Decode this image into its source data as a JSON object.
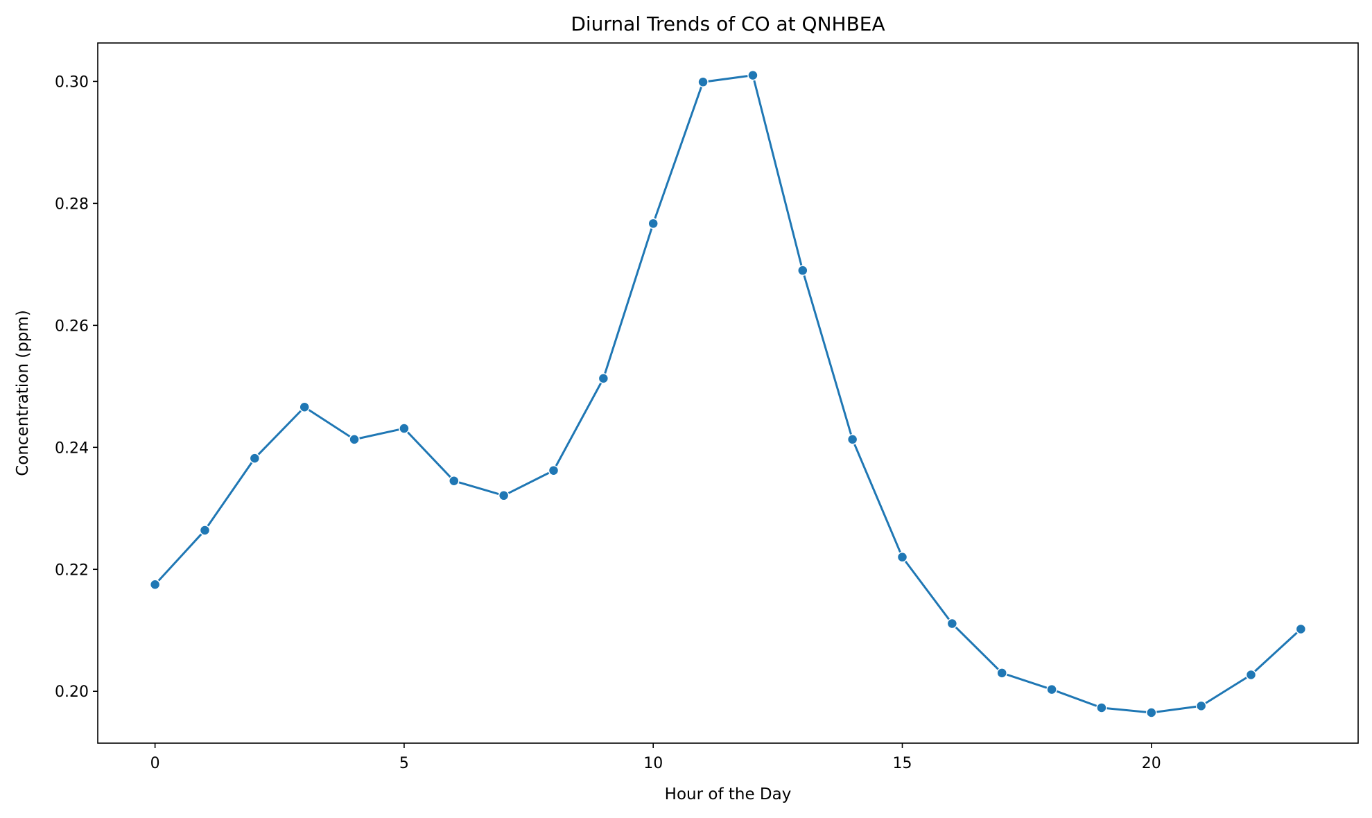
{
  "chart_data": {
    "type": "line",
    "title": "Diurnal Trends of CO at QNHBEA",
    "xlabel": "Hour of the Day",
    "ylabel": "Concentration (ppm)",
    "xlim": [
      -1.15,
      24.15
    ],
    "ylim": [
      0.1915,
      0.3063
    ],
    "xticks": [
      0,
      5,
      10,
      15,
      20
    ],
    "xtick_labels": [
      "0",
      "5",
      "10",
      "15",
      "20"
    ],
    "yticks": [
      0.2,
      0.22,
      0.24,
      0.26,
      0.28,
      0.3
    ],
    "ytick_labels": [
      "0.20",
      "0.22",
      "0.24",
      "0.26",
      "0.28",
      "0.30"
    ],
    "grid": false,
    "legend": "none",
    "series": [
      {
        "color": "#1f77b4",
        "marker": "circle",
        "x": [
          0,
          1,
          2,
          3,
          4,
          5,
          6,
          7,
          8,
          9,
          10,
          11,
          12,
          13,
          14,
          15,
          16,
          17,
          18,
          19,
          20,
          21,
          22,
          23
        ],
        "y": [
          0.2175,
          0.2264,
          0.2382,
          0.2466,
          0.2413,
          0.2431,
          0.2345,
          0.2321,
          0.2362,
          0.2513,
          0.2767,
          0.2999,
          0.301,
          0.269,
          0.2413,
          0.222,
          0.2111,
          0.203,
          0.2003,
          0.1973,
          0.1965,
          0.1976,
          0.2027,
          0.2102
        ]
      }
    ]
  }
}
